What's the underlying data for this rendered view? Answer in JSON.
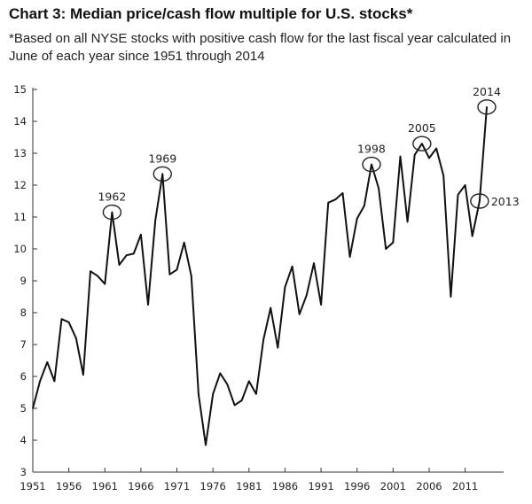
{
  "header": {
    "title": "Chart 3: Median price/cash flow multiple for U.S. stocks*",
    "subtitle": "*Based on all NYSE stocks with positive cash flow for the last fiscal year calculated in June of each year since 1951 through 2014"
  },
  "chart_data": {
    "type": "line",
    "title": "Chart 3: Median price/cash flow multiple for U.S. stocks*",
    "xlabel": "",
    "ylabel": "",
    "xlim": [
      1951,
      2014
    ],
    "ylim": [
      3,
      15
    ],
    "grid": false,
    "legend": "none",
    "x_ticks": [
      1951,
      1956,
      1961,
      1966,
      1971,
      1976,
      1981,
      1986,
      1991,
      1996,
      2001,
      2006,
      2011
    ],
    "y_ticks": [
      3,
      4,
      5,
      6,
      7,
      8,
      9,
      10,
      11,
      12,
      13,
      14,
      15
    ],
    "series": [
      {
        "name": "Median price/cash flow",
        "x": [
          1951,
          1952,
          1953,
          1954,
          1955,
          1956,
          1957,
          1958,
          1959,
          1960,
          1961,
          1962,
          1963,
          1964,
          1965,
          1966,
          1967,
          1968,
          1969,
          1970,
          1971,
          1972,
          1973,
          1974,
          1975,
          1976,
          1977,
          1978,
          1979,
          1980,
          1981,
          1982,
          1983,
          1984,
          1985,
          1986,
          1987,
          1988,
          1989,
          1990,
          1991,
          1992,
          1993,
          1994,
          1995,
          1996,
          1997,
          1998,
          1999,
          2000,
          2001,
          2002,
          2003,
          2004,
          2005,
          2006,
          2007,
          2008,
          2009,
          2010,
          2011,
          2012,
          2013,
          2014
        ],
        "values": [
          5.0,
          5.85,
          6.45,
          5.85,
          7.8,
          7.7,
          7.2,
          6.05,
          9.3,
          9.15,
          8.9,
          11.15,
          9.5,
          9.8,
          9.85,
          10.45,
          8.25,
          10.9,
          12.35,
          9.2,
          9.35,
          10.2,
          9.15,
          5.45,
          3.85,
          5.45,
          6.1,
          5.75,
          5.1,
          5.25,
          5.85,
          5.45,
          7.15,
          8.15,
          6.9,
          8.8,
          9.45,
          7.95,
          8.55,
          9.55,
          8.25,
          11.45,
          11.55,
          11.75,
          9.75,
          10.95,
          11.35,
          12.65,
          11.9,
          10.0,
          10.2,
          12.9,
          10.85,
          12.95,
          13.3,
          12.85,
          13.15,
          12.3,
          8.5,
          11.7,
          12.0,
          10.4,
          11.5,
          14.45
        ]
      }
    ],
    "annotations": [
      {
        "label": "1962",
        "x": 1962,
        "y": 11.15
      },
      {
        "label": "1969",
        "x": 1969,
        "y": 12.35
      },
      {
        "label": "1998",
        "x": 1998,
        "y": 12.65
      },
      {
        "label": "2005",
        "x": 2005,
        "y": 13.3
      },
      {
        "label": "2013",
        "x": 2013,
        "y": 11.5
      },
      {
        "label": "2014",
        "x": 2014,
        "y": 14.45
      }
    ]
  }
}
